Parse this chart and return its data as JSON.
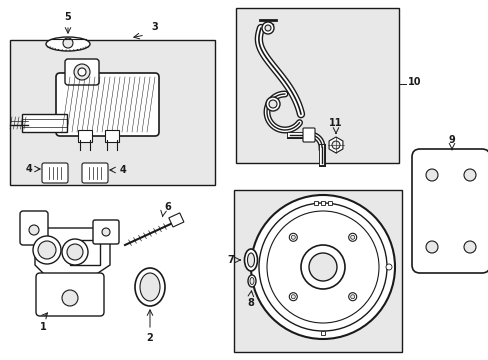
{
  "bg_color": "#ffffff",
  "line_color": "#1a1a1a",
  "light_gray": "#e8e8e8",
  "figsize": [
    4.89,
    3.6
  ],
  "dpi": 100
}
